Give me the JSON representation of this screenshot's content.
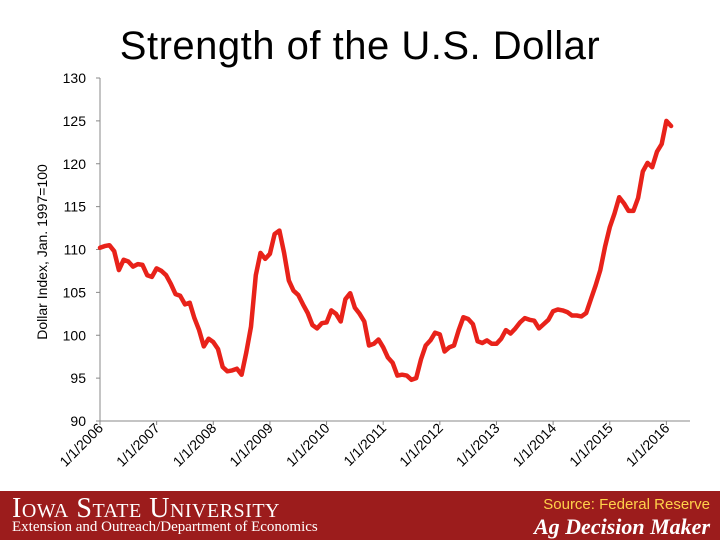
{
  "title": "Strength of the U.S. Dollar",
  "footer": {
    "university": "Iowa State University",
    "department": "Extension and Outreach/Department of Economics",
    "source": "Source: Federal Reserve",
    "brand": "Ag Decision Maker"
  },
  "colors": {
    "line": "#e8221a",
    "footer_bg": "#9c1c1c",
    "source_text": "#ffd24a"
  },
  "chart_data": {
    "type": "line",
    "title": "Strength of the U.S. Dollar",
    "ylabel": "Dollar Index, Jan. 1997=100",
    "xlabel": "",
    "ylim": [
      90,
      130
    ],
    "yticks": [
      90,
      95,
      100,
      105,
      110,
      115,
      120,
      125,
      130
    ],
    "xlim": [
      "2006-01",
      "2016-06"
    ],
    "xtick_labels": [
      "1/1/2006",
      "1/1/2007",
      "1/1/2008",
      "1/1/2009",
      "1/1/2010",
      "1/1/2011",
      "1/1/2012",
      "1/1/2013",
      "1/1/2014",
      "1/1/2015",
      "1/1/2016"
    ],
    "grid": false,
    "legend": "none",
    "series": [
      {
        "points": [
          [
            "2006-01",
            110.2
          ],
          [
            "2006-02",
            110.4
          ],
          [
            "2006-03",
            110.5
          ],
          [
            "2006-04",
            109.8
          ],
          [
            "2006-05",
            107.6
          ],
          [
            "2006-06",
            108.8
          ],
          [
            "2006-07",
            108.6
          ],
          [
            "2006-08",
            108.0
          ],
          [
            "2006-09",
            108.3
          ],
          [
            "2006-10",
            108.2
          ],
          [
            "2006-11",
            107.0
          ],
          [
            "2006-12",
            106.8
          ],
          [
            "2007-01",
            107.8
          ],
          [
            "2007-02",
            107.5
          ],
          [
            "2007-03",
            107.0
          ],
          [
            "2007-04",
            106.0
          ],
          [
            "2007-05",
            104.8
          ],
          [
            "2007-06",
            104.6
          ],
          [
            "2007-07",
            103.6
          ],
          [
            "2007-08",
            103.8
          ],
          [
            "2007-09",
            102.0
          ],
          [
            "2007-10",
            100.6
          ],
          [
            "2007-11",
            98.7
          ],
          [
            "2007-12",
            99.6
          ],
          [
            "2008-01",
            99.2
          ],
          [
            "2008-02",
            98.4
          ],
          [
            "2008-03",
            96.3
          ],
          [
            "2008-04",
            95.8
          ],
          [
            "2008-05",
            95.9
          ],
          [
            "2008-06",
            96.1
          ],
          [
            "2008-07",
            95.4
          ],
          [
            "2008-08",
            98.0
          ],
          [
            "2008-09",
            101.0
          ],
          [
            "2008-10",
            107.0
          ],
          [
            "2008-11",
            109.6
          ],
          [
            "2008-12",
            108.9
          ],
          [
            "2009-01",
            109.5
          ],
          [
            "2009-02",
            111.8
          ],
          [
            "2009-03",
            112.2
          ],
          [
            "2009-04",
            109.6
          ],
          [
            "2009-05",
            106.4
          ],
          [
            "2009-06",
            105.2
          ],
          [
            "2009-07",
            104.7
          ],
          [
            "2009-08",
            103.6
          ],
          [
            "2009-09",
            102.6
          ],
          [
            "2009-10",
            101.2
          ],
          [
            "2009-11",
            100.8
          ],
          [
            "2009-12",
            101.4
          ],
          [
            "2010-01",
            101.5
          ],
          [
            "2010-02",
            102.9
          ],
          [
            "2010-03",
            102.5
          ],
          [
            "2010-04",
            101.6
          ],
          [
            "2010-05",
            104.2
          ],
          [
            "2010-06",
            104.9
          ],
          [
            "2010-07",
            103.2
          ],
          [
            "2010-08",
            102.5
          ],
          [
            "2010-09",
            101.6
          ],
          [
            "2010-10",
            98.8
          ],
          [
            "2010-11",
            99.0
          ],
          [
            "2010-12",
            99.5
          ],
          [
            "2011-01",
            98.6
          ],
          [
            "2011-02",
            97.4
          ],
          [
            "2011-03",
            96.8
          ],
          [
            "2011-04",
            95.3
          ],
          [
            "2011-05",
            95.4
          ],
          [
            "2011-06",
            95.3
          ],
          [
            "2011-07",
            94.8
          ],
          [
            "2011-08",
            95.0
          ],
          [
            "2011-09",
            97.2
          ],
          [
            "2011-10",
            98.8
          ],
          [
            "2011-11",
            99.4
          ],
          [
            "2011-12",
            100.3
          ],
          [
            "2012-01",
            100.1
          ],
          [
            "2012-02",
            98.1
          ],
          [
            "2012-03",
            98.6
          ],
          [
            "2012-04",
            98.8
          ],
          [
            "2012-05",
            100.6
          ],
          [
            "2012-06",
            102.1
          ],
          [
            "2012-07",
            101.9
          ],
          [
            "2012-08",
            101.3
          ],
          [
            "2012-09",
            99.3
          ],
          [
            "2012-10",
            99.1
          ],
          [
            "2012-11",
            99.4
          ],
          [
            "2012-12",
            99.0
          ],
          [
            "2013-01",
            99.0
          ],
          [
            "2013-02",
            99.6
          ],
          [
            "2013-03",
            100.6
          ],
          [
            "2013-04",
            100.2
          ],
          [
            "2013-05",
            100.8
          ],
          [
            "2013-06",
            101.5
          ],
          [
            "2013-07",
            102.0
          ],
          [
            "2013-08",
            101.8
          ],
          [
            "2013-09",
            101.7
          ],
          [
            "2013-10",
            100.8
          ],
          [
            "2013-11",
            101.3
          ],
          [
            "2013-12",
            101.8
          ],
          [
            "2014-01",
            102.8
          ],
          [
            "2014-02",
            103.0
          ],
          [
            "2014-03",
            102.9
          ],
          [
            "2014-04",
            102.7
          ],
          [
            "2014-05",
            102.3
          ],
          [
            "2014-06",
            102.3
          ],
          [
            "2014-07",
            102.2
          ],
          [
            "2014-08",
            102.6
          ],
          [
            "2014-09",
            104.2
          ],
          [
            "2014-10",
            105.8
          ],
          [
            "2014-11",
            107.6
          ],
          [
            "2014-12",
            110.3
          ],
          [
            "2015-01",
            112.6
          ],
          [
            "2015-02",
            114.2
          ],
          [
            "2015-03",
            116.1
          ],
          [
            "2015-04",
            115.4
          ],
          [
            "2015-05",
            114.5
          ],
          [
            "2015-06",
            114.5
          ],
          [
            "2015-07",
            116.0
          ],
          [
            "2015-08",
            119.1
          ],
          [
            "2015-09",
            120.1
          ],
          [
            "2015-10",
            119.6
          ],
          [
            "2015-11",
            121.4
          ],
          [
            "2015-12",
            122.3
          ],
          [
            "2016-01",
            125.0
          ],
          [
            "2016-02",
            124.4
          ]
        ]
      }
    ]
  }
}
